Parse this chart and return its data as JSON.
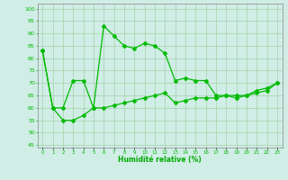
{
  "line1_x": [
    0,
    1,
    2,
    3,
    4,
    5,
    6,
    7,
    8,
    9,
    10,
    11,
    12,
    13,
    14,
    15,
    16,
    17,
    18,
    19,
    20,
    21,
    22,
    23
  ],
  "line1_y": [
    83,
    60,
    60,
    71,
    71,
    60,
    93,
    89,
    85,
    84,
    86,
    85,
    82,
    71,
    72,
    71,
    71,
    65,
    65,
    64,
    65,
    67,
    68,
    70
  ],
  "line2_x": [
    0,
    1,
    2,
    3,
    4,
    5,
    6,
    7,
    8,
    9,
    10,
    11,
    12,
    13,
    14,
    15,
    16,
    17,
    18,
    19,
    20,
    21,
    22,
    23
  ],
  "line2_y": [
    83,
    60,
    55,
    55,
    57,
    60,
    60,
    61,
    62,
    63,
    64,
    65,
    66,
    62,
    63,
    64,
    64,
    64,
    65,
    65,
    65,
    66,
    67,
    70
  ],
  "line_color": "#00BB00",
  "bg_color": "#D0EDE6",
  "grid_color": "#99CC99",
  "xlabel": "Humidité relative (%)",
  "xlabel_color": "#00AA00",
  "ylabel_ticks": [
    45,
    50,
    55,
    60,
    65,
    70,
    75,
    80,
    85,
    90,
    95,
    100
  ],
  "ylim": [
    44,
    102
  ],
  "xlim": [
    -0.5,
    23.5
  ],
  "xtick_labels": [
    "0",
    "1",
    "2",
    "3",
    "4",
    "5",
    "6",
    "7",
    "8",
    "9",
    "10",
    "11",
    "12",
    "13",
    "14",
    "15",
    "16",
    "17",
    "18",
    "19",
    "20",
    "21",
    "22",
    "23"
  ],
  "marker": "D",
  "marker_size": 2.0,
  "line_width": 0.9
}
